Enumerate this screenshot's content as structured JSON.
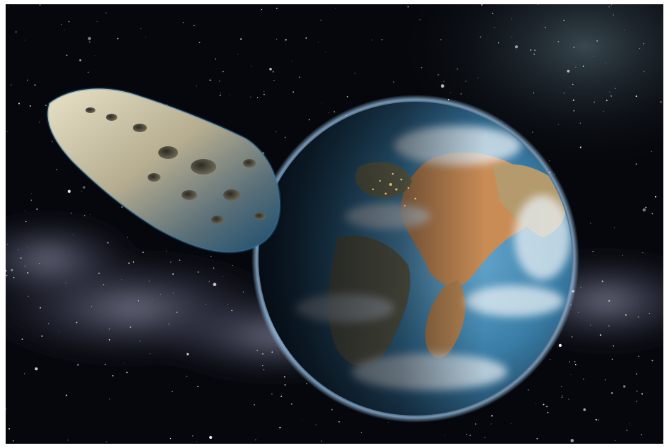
{
  "scene": {
    "subject": "asteroid-approaching-earth",
    "colors": {
      "space": "#05070c",
      "nebula": "#8a90b8",
      "earth_ocean": "#3f86b5",
      "earth_land": "#c88a52",
      "asteroid": "#b6b09b",
      "atmosphere": "#7fb4e3"
    }
  }
}
